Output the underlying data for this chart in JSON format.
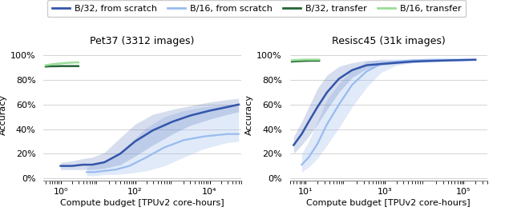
{
  "title_left": "Pet37 (3312 images)",
  "title_right": "Resisc45 (31k images)",
  "xlabel": "Compute budget [TPUv2 core-hours]",
  "ylabel": "Accuracy",
  "legend_entries": [
    "B/32, from scratch",
    "B/16, from scratch",
    "B/32, transfer",
    "B/16, transfer"
  ],
  "colors": {
    "b32_scratch": "#3355aa",
    "b16_scratch": "#99bbee",
    "b32_transfer": "#226633",
    "b16_transfer": "#99dd99"
  },
  "pet37": {
    "xlim": [
      0.35,
      70000
    ],
    "ylim": [
      -0.02,
      1.05
    ],
    "b32_scratch_x": [
      1.0,
      2.0,
      4.0,
      7.0,
      15.0,
      40.0,
      100.0,
      300.0,
      1000.0,
      3000.0,
      10000.0,
      30000.0,
      60000.0
    ],
    "b32_scratch_y": [
      0.1,
      0.1,
      0.11,
      0.11,
      0.13,
      0.2,
      0.3,
      0.39,
      0.46,
      0.51,
      0.55,
      0.58,
      0.6
    ],
    "b32_scratch_lo": [
      0.07,
      0.07,
      0.07,
      0.07,
      0.08,
      0.11,
      0.18,
      0.27,
      0.36,
      0.43,
      0.48,
      0.52,
      0.54
    ],
    "b32_scratch_hi": [
      0.13,
      0.14,
      0.16,
      0.17,
      0.21,
      0.33,
      0.44,
      0.52,
      0.56,
      0.59,
      0.62,
      0.64,
      0.65
    ],
    "b16_scratch_x": [
      5.0,
      8.0,
      15.0,
      30.0,
      70.0,
      200.0,
      600.0,
      2000.0,
      7000.0,
      30000.0,
      60000.0
    ],
    "b16_scratch_y": [
      0.05,
      0.05,
      0.06,
      0.07,
      0.1,
      0.17,
      0.25,
      0.31,
      0.34,
      0.36,
      0.36
    ],
    "b16_scratch_lo": [
      0.02,
      0.02,
      0.03,
      0.03,
      0.04,
      0.06,
      0.1,
      0.17,
      0.24,
      0.29,
      0.3
    ],
    "b16_scratch_hi": [
      0.09,
      0.11,
      0.14,
      0.18,
      0.28,
      0.41,
      0.5,
      0.55,
      0.58,
      0.6,
      0.6
    ],
    "b32_transfer_x": [
      0.4,
      0.6,
      0.8,
      1.0,
      1.3,
      1.7,
      2.2,
      3.0
    ],
    "b32_transfer_y": [
      0.91,
      0.912,
      0.912,
      0.913,
      0.913,
      0.913,
      0.913,
      0.913
    ],
    "b16_transfer_x": [
      0.4,
      0.6,
      0.8,
      1.0,
      1.3,
      1.7,
      2.2,
      3.0
    ],
    "b16_transfer_y": [
      0.92,
      0.928,
      0.932,
      0.935,
      0.938,
      0.94,
      0.942,
      0.943
    ],
    "xticks": [
      1,
      100,
      10000
    ],
    "xticklabels": [
      "10⁰",
      "10²",
      "10⁴"
    ]
  },
  "resisc45": {
    "xlim": [
      4.0,
      400000
    ],
    "ylim": [
      -0.02,
      1.05
    ],
    "b32_scratch_x": [
      5.0,
      8.0,
      12.0,
      20.0,
      35.0,
      70.0,
      150.0,
      350.0,
      800.0,
      2000.0,
      5000.0,
      15000.0,
      50000.0,
      200000.0
    ],
    "b32_scratch_y": [
      0.27,
      0.36,
      0.46,
      0.58,
      0.7,
      0.81,
      0.88,
      0.92,
      0.93,
      0.94,
      0.95,
      0.955,
      0.96,
      0.965
    ],
    "b32_scratch_lo": [
      0.2,
      0.27,
      0.34,
      0.44,
      0.56,
      0.7,
      0.82,
      0.89,
      0.92,
      0.93,
      0.94,
      0.95,
      0.955,
      0.96
    ],
    "b32_scratch_hi": [
      0.34,
      0.46,
      0.58,
      0.73,
      0.84,
      0.91,
      0.94,
      0.96,
      0.96,
      0.96,
      0.96,
      0.965,
      0.965,
      0.97
    ],
    "b16_scratch_x": [
      8.0,
      12.0,
      20.0,
      35.0,
      70.0,
      150.0,
      350.0,
      800.0,
      2000.0,
      5000.0,
      15000.0,
      50000.0,
      200000.0
    ],
    "b16_scratch_y": [
      0.11,
      0.17,
      0.28,
      0.44,
      0.6,
      0.76,
      0.87,
      0.93,
      0.95,
      0.96,
      0.965,
      0.965,
      0.965
    ],
    "b16_scratch_lo": [
      0.05,
      0.09,
      0.16,
      0.27,
      0.41,
      0.58,
      0.74,
      0.86,
      0.92,
      0.94,
      0.95,
      0.955,
      0.96
    ],
    "b16_scratch_hi": [
      0.2,
      0.3,
      0.46,
      0.64,
      0.77,
      0.88,
      0.95,
      0.97,
      0.97,
      0.97,
      0.97,
      0.97,
      0.97
    ],
    "b32_transfer_x": [
      4.5,
      6.0,
      8.0,
      10.0,
      13.0,
      17.0,
      22.0
    ],
    "b32_transfer_y": [
      0.95,
      0.953,
      0.955,
      0.956,
      0.957,
      0.957,
      0.957
    ],
    "b16_transfer_x": [
      4.5,
      6.0,
      8.0,
      10.0,
      13.0,
      17.0,
      22.0
    ],
    "b16_transfer_y": [
      0.96,
      0.963,
      0.965,
      0.966,
      0.966,
      0.966,
      0.966
    ],
    "xticks": [
      10,
      1000,
      100000
    ],
    "xticklabels": [
      "10¹",
      "10³",
      "10⁵"
    ]
  }
}
